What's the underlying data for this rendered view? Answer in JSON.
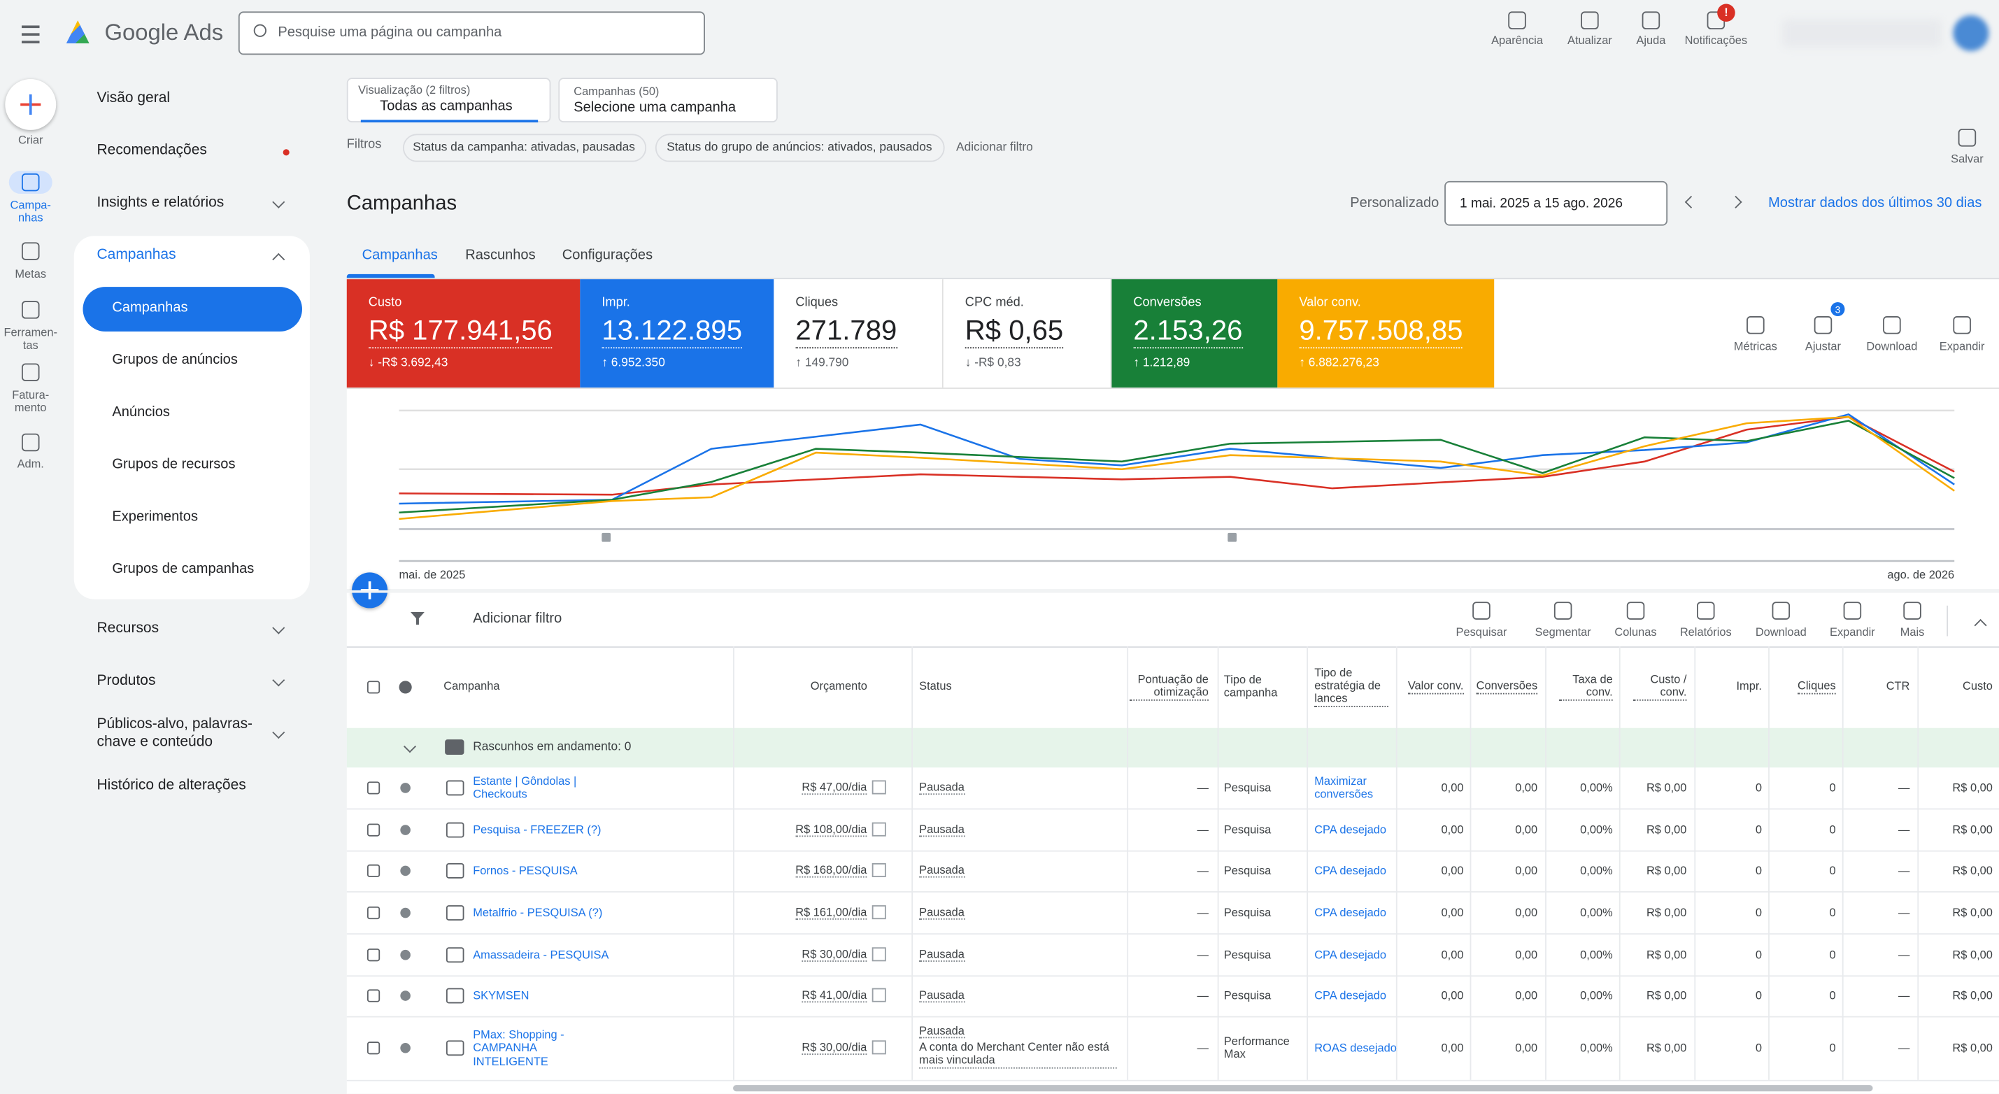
{
  "header": {
    "brand": "Google Ads",
    "search": "Pesquise uma página ou campanha",
    "actions": [
      "Aparência",
      "Atualizar",
      "Ajuda",
      "Notificações"
    ],
    "badge": "!"
  },
  "rail": [
    "Criar",
    "Campa-nhas",
    "Metas",
    "Ferramen-tas",
    "Fatura-mento",
    "Adm."
  ],
  "nav": {
    "items": [
      "Visão geral",
      "Recomendações",
      "Insights e relatórios",
      "Campanhas"
    ],
    "sub": [
      "Campanhas",
      "Grupos de anúncios",
      "Anúncios",
      "Grupos de recursos",
      "Experimentos",
      "Grupos de campanhas"
    ],
    "more": [
      "Recursos",
      "Produtos",
      "Públicos-alvo, palavras-chave e conteúdo",
      "Histórico de alterações"
    ]
  },
  "view": {
    "label": "Visualização (2 filtros)",
    "value": "Todas as campanhas"
  },
  "campaigns_select": {
    "label": "Campanhas (50)",
    "value": "Selecione uma campanha"
  },
  "filters": {
    "label": "Filtros",
    "chips": [
      "Status da campanha: ativadas, pausadas",
      "Status do grupo de anúncios: ativados, pausados"
    ],
    "add": "Adicionar filtro"
  },
  "save": "Salvar",
  "title": "Campanhas",
  "date": {
    "label": "Personalizado",
    "range": "1 mai. 2025 a 15 ago. 2026",
    "last30": "Mostrar dados dos últimos 30 dias"
  },
  "tabs": [
    "Campanhas",
    "Rascunhos",
    "Configurações"
  ],
  "scorecards": [
    {
      "name": "Custo",
      "value": "R$ 177.941,56",
      "delta": "↓ -R$ 3.692,43",
      "color": "#d93025"
    },
    {
      "name": "Impr.",
      "value": "13.122.895",
      "delta": "↑ 6.952.350",
      "color": "#1a73e8"
    },
    {
      "name": "Cliques",
      "value": "271.789",
      "delta": "↑ 149.790",
      "color": "#ffffff"
    },
    {
      "name": "CPC méd.",
      "value": "R$ 0,65",
      "delta": "↓ -R$ 0,83",
      "color": "#ffffff"
    },
    {
      "name": "Conversões",
      "value": "2.153,26",
      "delta": "↑ 1.212,89",
      "color": "#188038"
    },
    {
      "name": "Valor conv.",
      "value": "9.757.508,85",
      "delta": "↑ 6.882.276,23",
      "color": "#f9ab00"
    }
  ],
  "chart_tools": {
    "items": [
      "Métricas",
      "Ajustar",
      "Download",
      "Expandir"
    ],
    "badge": "3"
  },
  "chart_axis": [
    "mai. de 2025",
    "ago. de 2026"
  ],
  "table_toolbar": {
    "filter": "Adicionar filtro",
    "tools": [
      "Pesquisar",
      "Segmentar",
      "Colunas",
      "Relatórios",
      "Download",
      "Expandir",
      "Mais"
    ]
  },
  "table": {
    "columns": [
      "Campanha",
      "Orçamento",
      "Status",
      "Pontuação de otimização",
      "Tipo de campanha",
      "Tipo de estratégia de lances",
      "Valor conv.",
      "Conversões",
      "Taxa de conv.",
      "Custo / conv.",
      "Impr.",
      "Cliques",
      "CTR",
      "Custo"
    ],
    "group": "Rascunhos em andamento: 0",
    "rows": [
      {
        "cells": [
          "Estante | Gôndolas | Checkouts",
          "R$ 47,00/dia",
          "Pausada",
          "—",
          "Pesquisa",
          "Maximizar conversões",
          "0,00",
          "0,00",
          "0,00%",
          "R$ 0,00",
          "0",
          "0",
          "—",
          "R$ 0,00"
        ]
      },
      {
        "cells": [
          "Pesquisa - FREEZER (?)",
          "R$ 108,00/dia",
          "Pausada",
          "—",
          "Pesquisa",
          "CPA desejado",
          "0,00",
          "0,00",
          "0,00%",
          "R$ 0,00",
          "0",
          "0",
          "—",
          "R$ 0,00"
        ]
      },
      {
        "cells": [
          "Fornos - PESQUISA",
          "R$ 168,00/dia",
          "Pausada",
          "—",
          "Pesquisa",
          "CPA desejado",
          "0,00",
          "0,00",
          "0,00%",
          "R$ 0,00",
          "0",
          "0",
          "—",
          "R$ 0,00"
        ]
      },
      {
        "cells": [
          "Metalfrio - PESQUISA (?)",
          "R$ 161,00/dia",
          "Pausada",
          "—",
          "Pesquisa",
          "CPA desejado",
          "0,00",
          "0,00",
          "0,00%",
          "R$ 0,00",
          "0",
          "0",
          "—",
          "R$ 0,00"
        ]
      },
      {
        "cells": [
          "Amassadeira - PESQUISA",
          "R$ 30,00/dia",
          "Pausada",
          "—",
          "Pesquisa",
          "CPA desejado",
          "0,00",
          "0,00",
          "0,00%",
          "R$ 0,00",
          "0",
          "0",
          "—",
          "R$ 0,00"
        ]
      },
      {
        "cells": [
          "SKYMSEN",
          "R$ 41,00/dia",
          "Pausada",
          "—",
          "Pesquisa",
          "CPA desejado",
          "0,00",
          "0,00",
          "0,00%",
          "R$ 0,00",
          "0",
          "0",
          "—",
          "R$ 0,00"
        ]
      },
      {
        "cells": [
          "PMax: Shopping - CAMPANHA INTELIGENTE",
          "R$ 30,00/dia",
          "Pausada",
          "—",
          "Performance Max",
          "ROAS desejado",
          "0,00",
          "0,00",
          "0,00%",
          "R$ 0,00",
          "0",
          "0",
          "—",
          "R$ 0,00"
        ],
        "note": "A conta do Merchant Center não está mais vinculada"
      }
    ]
  }
}
